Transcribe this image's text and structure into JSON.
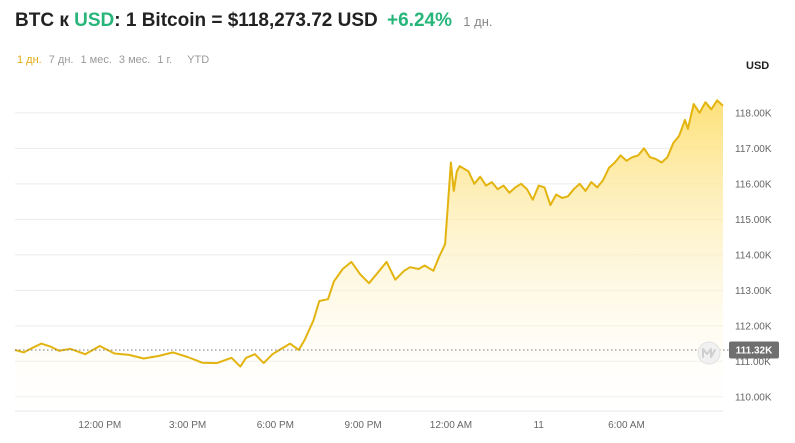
{
  "header": {
    "pair_text": "BTC к ",
    "quote": "USD",
    "price_text": ": 1 Bitcoin = $118,273.72 USD",
    "change": "+6.24%",
    "period": "1 дн."
  },
  "tabs": [
    "1 дн.",
    "7 дн.",
    "1 мес.",
    "3 мес.",
    "1 г.",
    "YTD"
  ],
  "active_tab": "1 дн.",
  "currency_label": "USD",
  "colors": {
    "line": "#e3b40f",
    "fill_top": "#fddf73",
    "fill_bottom": "#ffffff",
    "positive": "#27b57a",
    "current_badge": "#6f6f6f",
    "grid": "#ececec"
  },
  "watermark_icon": "logo-watermark-icon",
  "chart_data": {
    "type": "area",
    "title": "",
    "xlabel": "",
    "ylabel": "USD",
    "ylim": [
      109600,
      118700
    ],
    "y_ticks": [
      110000,
      111000,
      112000,
      113000,
      114000,
      115000,
      116000,
      117000,
      118000
    ],
    "y_tick_labels": [
      "110.00K",
      "111.00K",
      "112.00K",
      "113.00K",
      "114.00K",
      "115.00K",
      "116.00K",
      "117.00K",
      "118.00K"
    ],
    "x_ticks": [
      2,
      5,
      8,
      11,
      14,
      17,
      20
    ],
    "x_tick_labels": [
      "12:00 PM",
      "3:00 PM",
      "6:00 PM",
      "9:00 PM",
      "12:00 AM",
      "11",
      "6:00 AM"
    ],
    "xlim": [
      -0.9,
      23.3
    ],
    "current_value": 111320,
    "current_label": "111.32K",
    "grid": true,
    "x": [
      -0.9,
      -0.6,
      -0.3,
      0.0,
      0.3,
      0.6,
      1.0,
      1.5,
      2.0,
      2.5,
      3.0,
      3.5,
      4.0,
      4.5,
      5.0,
      5.5,
      6.0,
      6.5,
      6.8,
      7.0,
      7.3,
      7.6,
      7.9,
      8.2,
      8.5,
      8.8,
      9.0,
      9.3,
      9.5,
      9.8,
      10.0,
      10.3,
      10.6,
      10.9,
      11.2,
      11.5,
      11.8,
      12.1,
      12.4,
      12.6,
      12.9,
      13.1,
      13.4,
      13.6,
      13.8,
      14.0,
      14.1,
      14.2,
      14.3,
      14.4,
      14.6,
      14.8,
      15.0,
      15.2,
      15.4,
      15.6,
      15.8,
      16.0,
      16.2,
      16.4,
      16.6,
      16.8,
      17.0,
      17.2,
      17.4,
      17.6,
      17.8,
      18.0,
      18.2,
      18.4,
      18.6,
      18.8,
      19.0,
      19.2,
      19.4,
      19.6,
      19.8,
      20.0,
      20.2,
      20.4,
      20.6,
      20.8,
      21.0,
      21.2,
      21.4,
      21.6,
      21.8,
      22.0,
      22.1,
      22.3,
      22.5,
      22.7,
      22.9,
      23.1,
      23.3
    ],
    "y": [
      111320,
      111250,
      111380,
      111500,
      111420,
      111300,
      111350,
      111200,
      111430,
      111220,
      111180,
      111080,
      111150,
      111250,
      111120,
      110960,
      110950,
      111100,
      110850,
      111100,
      111200,
      110950,
      111200,
      111350,
      111500,
      111320,
      111600,
      112150,
      112700,
      112750,
      113250,
      113600,
      113800,
      113450,
      113200,
      113500,
      113800,
      113300,
      113550,
      113650,
      113600,
      113700,
      113550,
      113950,
      114300,
      116600,
      115800,
      116350,
      116500,
      116450,
      116350,
      116000,
      116200,
      115950,
      116050,
      115850,
      115950,
      115750,
      115900,
      116000,
      115850,
      115550,
      115950,
      115900,
      115400,
      115700,
      115600,
      115650,
      115850,
      116000,
      115800,
      116050,
      115900,
      116100,
      116450,
      116600,
      116800,
      116650,
      116750,
      116800,
      117000,
      116750,
      116700,
      116600,
      116750,
      117150,
      117350,
      117800,
      117550,
      118250,
      118000,
      118300,
      118100,
      118350,
      118200
    ]
  }
}
